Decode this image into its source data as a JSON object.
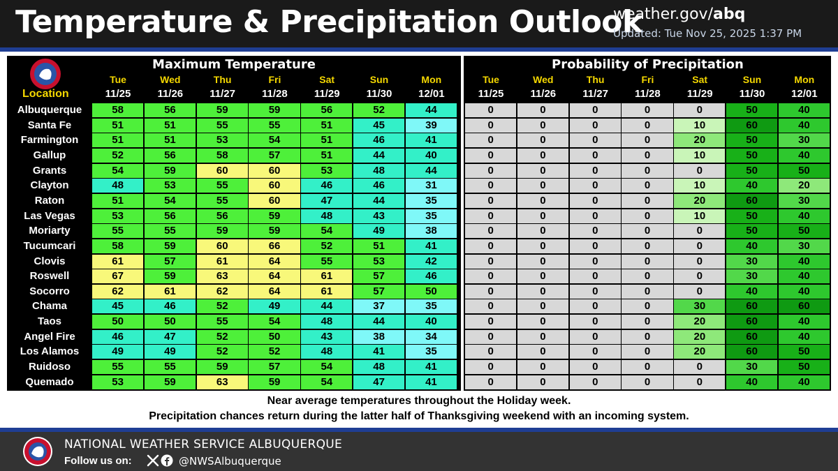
{
  "header": {
    "title": "Temperature & Precipitation Outlook",
    "site_prefix": "weather.gov/",
    "site_suffix": "abq",
    "updated": "Updated: Tue Nov 25, 2025 1:37 PM"
  },
  "table": {
    "location_header": "Location",
    "max_temp_title": "Maximum Temperature",
    "pop_title": "Probability of Precipitation",
    "days": [
      "Tue",
      "Wed",
      "Thu",
      "Fri",
      "Sat",
      "Sun",
      "Mon"
    ],
    "dates": [
      "11/25",
      "11/26",
      "11/27",
      "11/28",
      "11/29",
      "11/30",
      "12/01"
    ],
    "rows": [
      {
        "location": "Albuquerque",
        "temps": [
          58,
          56,
          59,
          59,
          56,
          52,
          44
        ],
        "pop": [
          0,
          0,
          0,
          0,
          0,
          50,
          40
        ]
      },
      {
        "location": "Santa Fe",
        "temps": [
          51,
          51,
          55,
          55,
          51,
          45,
          39
        ],
        "pop": [
          0,
          0,
          0,
          0,
          10,
          60,
          40
        ]
      },
      {
        "location": "Farmington",
        "temps": [
          51,
          51,
          53,
          54,
          51,
          46,
          41
        ],
        "pop": [
          0,
          0,
          0,
          0,
          20,
          50,
          30
        ]
      },
      {
        "location": "Gallup",
        "temps": [
          52,
          56,
          58,
          57,
          51,
          44,
          40
        ],
        "pop": [
          0,
          0,
          0,
          0,
          10,
          50,
          40
        ]
      },
      {
        "location": "Grants",
        "temps": [
          54,
          59,
          60,
          60,
          53,
          48,
          44
        ],
        "pop": [
          0,
          0,
          0,
          0,
          0,
          50,
          50
        ]
      },
      {
        "location": "Clayton",
        "temps": [
          48,
          53,
          55,
          60,
          46,
          46,
          31
        ],
        "pop": [
          0,
          0,
          0,
          0,
          10,
          40,
          20
        ]
      },
      {
        "location": "Raton",
        "temps": [
          51,
          54,
          55,
          60,
          47,
          44,
          35
        ],
        "pop": [
          0,
          0,
          0,
          0,
          20,
          60,
          30
        ]
      },
      {
        "location": "Las Vegas",
        "temps": [
          53,
          56,
          56,
          59,
          48,
          43,
          35
        ],
        "pop": [
          0,
          0,
          0,
          0,
          10,
          50,
          40
        ]
      },
      {
        "location": "Moriarty",
        "temps": [
          55,
          55,
          59,
          59,
          54,
          49,
          38
        ],
        "pop": [
          0,
          0,
          0,
          0,
          0,
          50,
          50
        ]
      },
      {
        "location": "Tucumcari",
        "temps": [
          58,
          59,
          60,
          66,
          52,
          51,
          41
        ],
        "pop": [
          0,
          0,
          0,
          0,
          0,
          40,
          30
        ]
      },
      {
        "location": "Clovis",
        "temps": [
          61,
          57,
          61,
          64,
          55,
          53,
          42
        ],
        "pop": [
          0,
          0,
          0,
          0,
          0,
          30,
          40
        ]
      },
      {
        "location": "Roswell",
        "temps": [
          67,
          59,
          63,
          64,
          61,
          57,
          46
        ],
        "pop": [
          0,
          0,
          0,
          0,
          0,
          30,
          40
        ]
      },
      {
        "location": "Socorro",
        "temps": [
          62,
          61,
          62,
          64,
          61,
          57,
          50
        ],
        "pop": [
          0,
          0,
          0,
          0,
          0,
          40,
          40
        ]
      },
      {
        "location": "Chama",
        "temps": [
          45,
          46,
          52,
          49,
          44,
          37,
          35
        ],
        "pop": [
          0,
          0,
          0,
          0,
          30,
          60,
          60
        ]
      },
      {
        "location": "Taos",
        "temps": [
          50,
          50,
          55,
          54,
          48,
          44,
          40
        ],
        "pop": [
          0,
          0,
          0,
          0,
          20,
          60,
          40
        ]
      },
      {
        "location": "Angel Fire",
        "temps": [
          46,
          47,
          52,
          50,
          43,
          38,
          34
        ],
        "pop": [
          0,
          0,
          0,
          0,
          20,
          60,
          40
        ]
      },
      {
        "location": "Los Alamos",
        "temps": [
          49,
          49,
          52,
          52,
          48,
          41,
          35
        ],
        "pop": [
          0,
          0,
          0,
          0,
          20,
          60,
          50
        ]
      },
      {
        "location": "Ruidoso",
        "temps": [
          55,
          55,
          59,
          57,
          54,
          48,
          41
        ],
        "pop": [
          0,
          0,
          0,
          0,
          0,
          30,
          50
        ]
      },
      {
        "location": "Quemado",
        "temps": [
          53,
          59,
          63,
          59,
          54,
          47,
          41
        ],
        "pop": [
          0,
          0,
          0,
          0,
          0,
          40,
          40
        ]
      }
    ]
  },
  "colors": {
    "temp_30s": "#7ff8f8",
    "temp_40s": "#33f0c8",
    "temp_50s": "#4ef03a",
    "temp_60s": "#f8f87a",
    "pop_0": "#d8d8d8",
    "pop_10": "#c9f5b8",
    "pop_20": "#8ee87a",
    "pop_30": "#52d84a",
    "pop_40": "#2ec82e",
    "pop_50": "#18b018",
    "pop_60": "#0f9a12"
  },
  "caption": {
    "line1": "Near average temperatures throughout the Holiday week.",
    "line2": "Precipitation chances return during the latter half of Thanksgiving weekend with an incoming system."
  },
  "footer": {
    "org": "NATIONAL WEATHER SERVICE ALBUQUERQUE",
    "follow": "Follow us on:",
    "handle": "@NWSAlbuquerque"
  }
}
